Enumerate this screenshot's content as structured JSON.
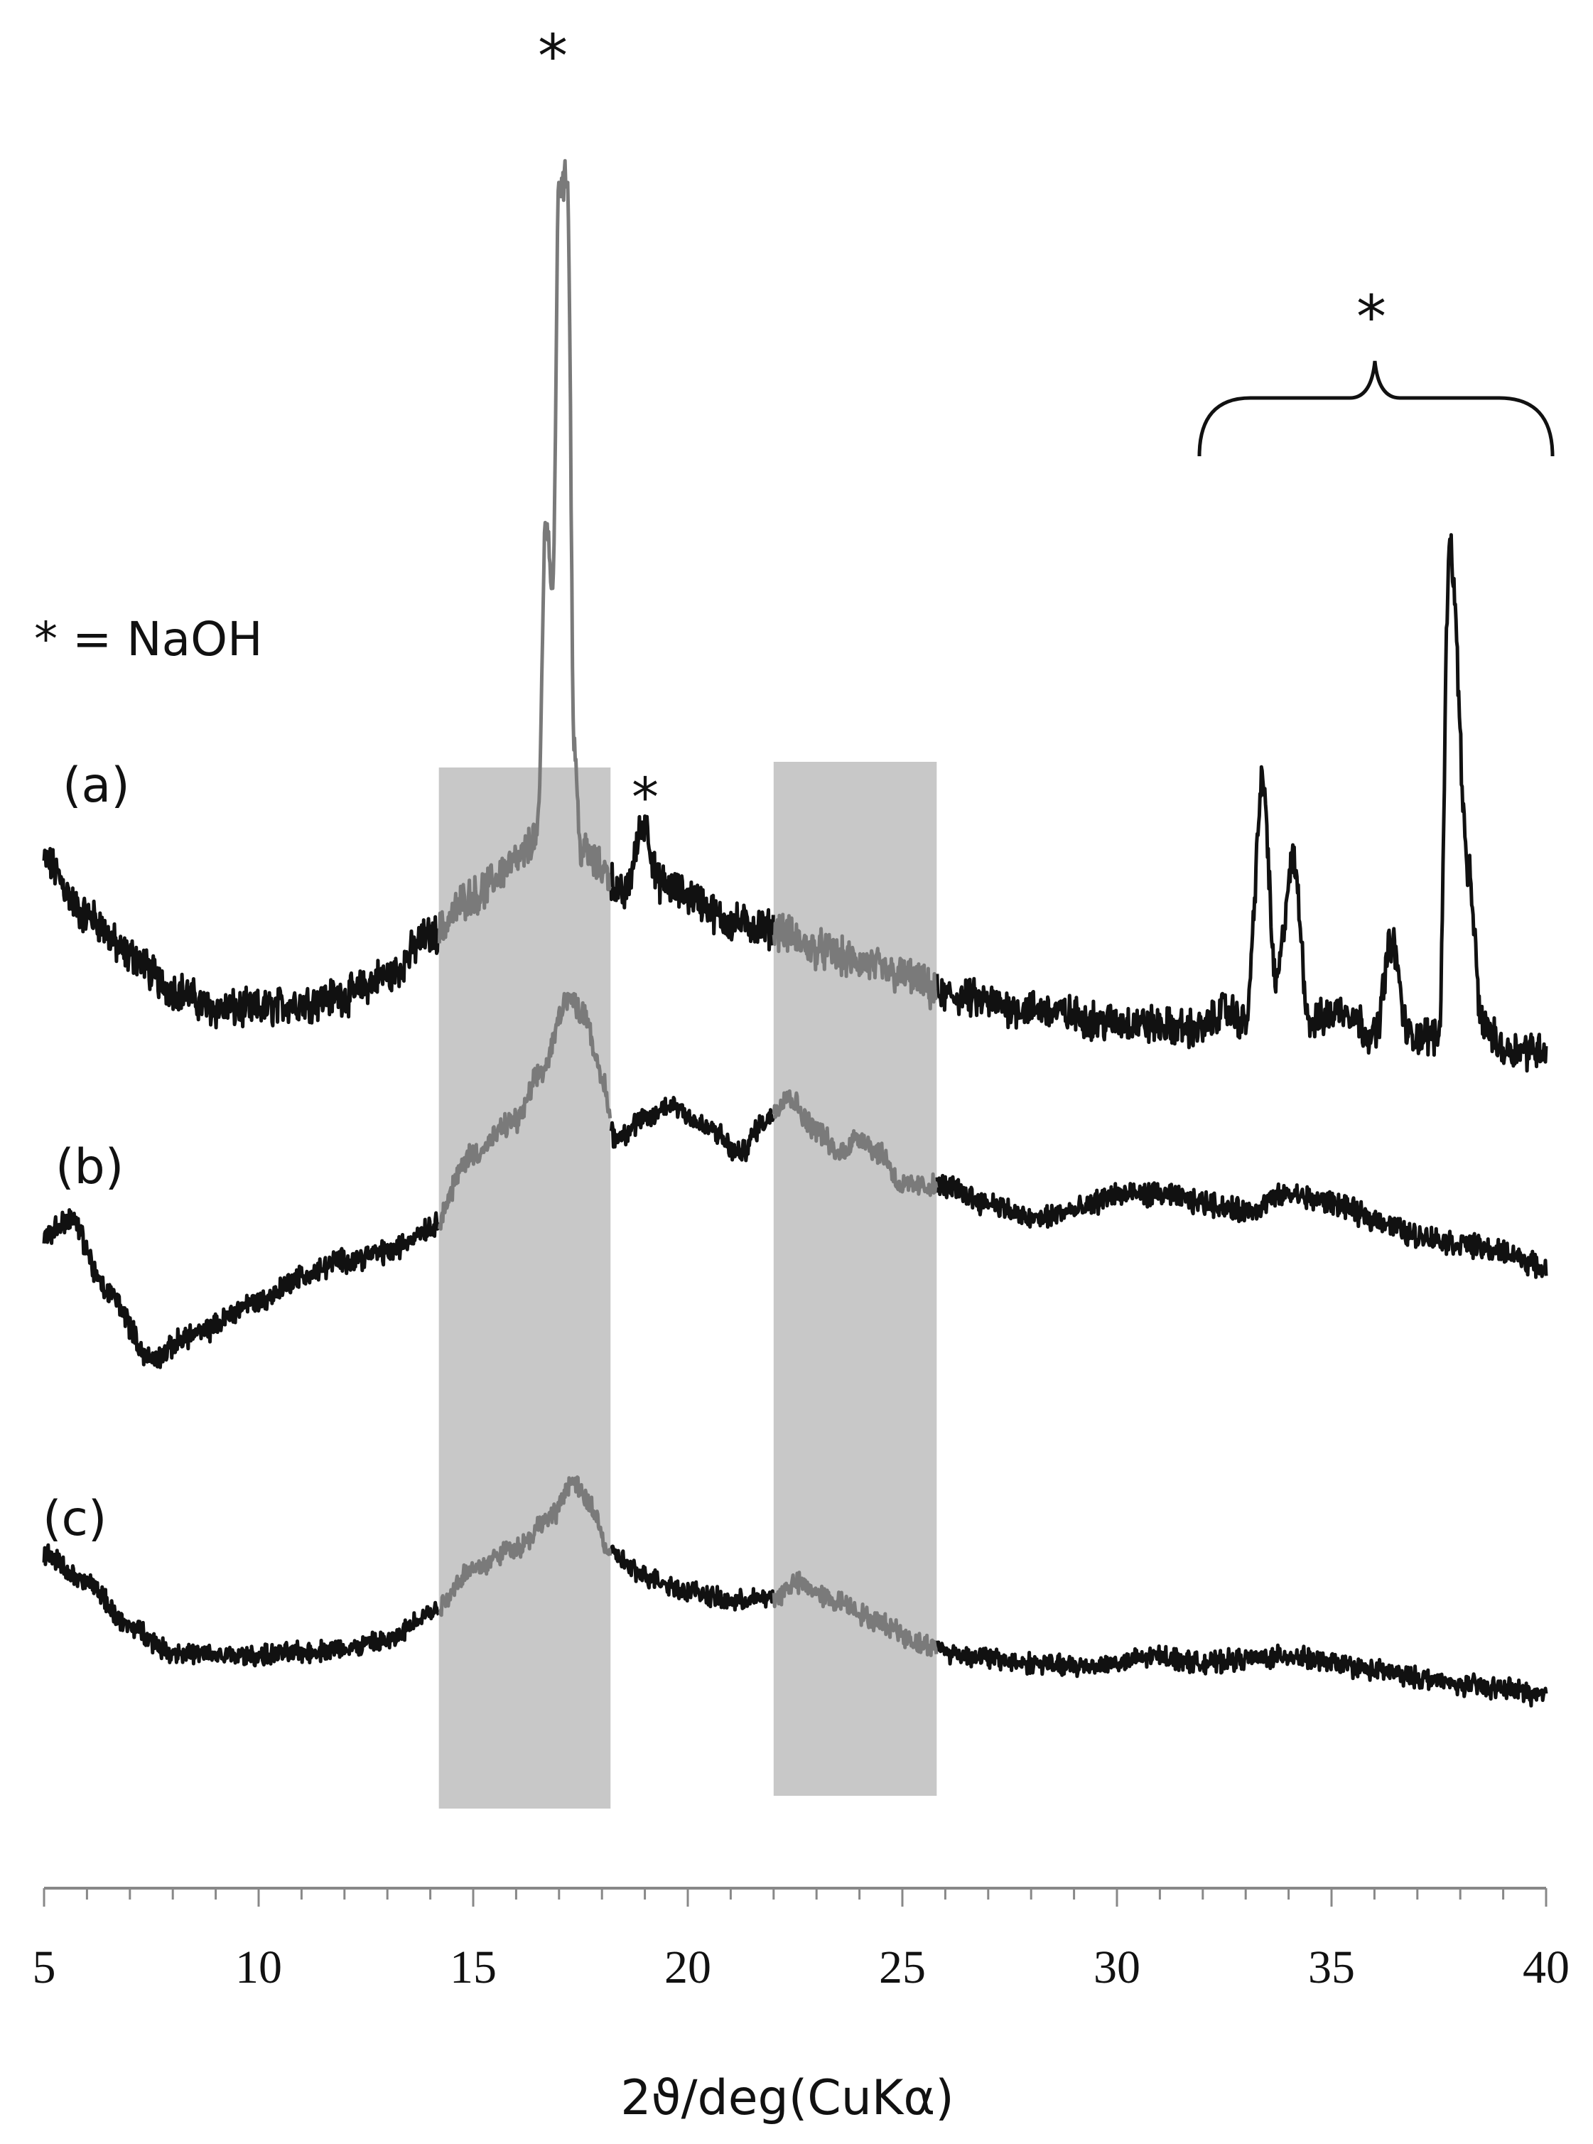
{
  "chart_data": {
    "type": "line",
    "title": "",
    "xlabel": "2ϑ/deg(CuKα)",
    "ylabel": "",
    "xlim": [
      5,
      40
    ],
    "x_ticks": [
      5,
      10,
      15,
      20,
      25,
      30,
      35,
      40
    ],
    "x_tick_labels": [
      "5",
      "10",
      "15",
      "20",
      "25",
      "30",
      "35",
      "40"
    ],
    "grid": false,
    "legend_text": "* = NaOH",
    "shaded_regions": [
      {
        "x": [
          14.2,
          18.2
        ],
        "color": "#c8c8c8"
      },
      {
        "x": [
          22.0,
          25.8
        ],
        "color": "#c8c8c8"
      }
    ],
    "series": [
      {
        "name": "(a)",
        "points": [
          [
            5,
            0.11
          ],
          [
            6,
            0.07
          ],
          [
            7,
            0.04
          ],
          [
            8,
            0.015
          ],
          [
            9,
            0.0
          ],
          [
            10,
            0.0
          ],
          [
            11,
            0.005
          ],
          [
            12,
            0.01
          ],
          [
            13,
            0.025
          ],
          [
            14,
            0.055
          ],
          [
            15,
            0.085
          ],
          [
            16,
            0.11
          ],
          [
            16.5,
            0.13
          ],
          [
            16.7,
            0.37
          ],
          [
            16.85,
            0.31
          ],
          [
            17.0,
            0.62
          ],
          [
            17.2,
            0.62
          ],
          [
            17.35,
            0.2
          ],
          [
            17.5,
            0.12
          ],
          [
            18.0,
            0.105
          ],
          [
            18.5,
            0.085
          ],
          [
            19.0,
            0.14
          ],
          [
            19.3,
            0.095
          ],
          [
            20.0,
            0.085
          ],
          [
            21.0,
            0.065
          ],
          [
            22.0,
            0.06
          ],
          [
            23.0,
            0.045
          ],
          [
            24.0,
            0.035
          ],
          [
            25.0,
            0.025
          ],
          [
            26.0,
            0.01
          ],
          [
            28.0,
            0.0
          ],
          [
            30.0,
            -0.01
          ],
          [
            32.0,
            -0.015
          ],
          [
            32.5,
            0.0
          ],
          [
            33.0,
            -0.01
          ],
          [
            33.4,
            0.17
          ],
          [
            33.7,
            0.02
          ],
          [
            34.1,
            0.11
          ],
          [
            34.5,
            -0.01
          ],
          [
            35.3,
            0.0
          ],
          [
            36.0,
            -0.02
          ],
          [
            36.4,
            0.05
          ],
          [
            36.8,
            -0.02
          ],
          [
            37.5,
            -0.02
          ],
          [
            37.75,
            0.35
          ],
          [
            38.2,
            0.1
          ],
          [
            38.5,
            -0.01
          ],
          [
            39.0,
            -0.03
          ],
          [
            40.0,
            -0.03
          ]
        ]
      },
      {
        "name": "(b)",
        "points": [
          [
            5,
            0.17
          ],
          [
            5.6,
            0.19
          ],
          [
            6.5,
            0.1
          ],
          [
            7.5,
            0.02
          ],
          [
            8.5,
            0.05
          ],
          [
            10,
            0.09
          ],
          [
            11,
            0.12
          ],
          [
            12,
            0.14
          ],
          [
            13,
            0.15
          ],
          [
            14,
            0.18
          ],
          [
            15,
            0.27
          ],
          [
            16,
            0.31
          ],
          [
            16.6,
            0.37
          ],
          [
            17.2,
            0.46
          ],
          [
            17.6,
            0.44
          ],
          [
            18.0,
            0.36
          ],
          [
            18.3,
            0.29
          ],
          [
            19.0,
            0.31
          ],
          [
            19.6,
            0.33
          ],
          [
            20.5,
            0.3
          ],
          [
            21.2,
            0.27
          ],
          [
            21.8,
            0.31
          ],
          [
            22.3,
            0.34
          ],
          [
            23.0,
            0.3
          ],
          [
            23.5,
            0.27
          ],
          [
            24.0,
            0.29
          ],
          [
            24.5,
            0.27
          ],
          [
            25.0,
            0.23
          ],
          [
            26.0,
            0.23
          ],
          [
            27.0,
            0.21
          ],
          [
            28.0,
            0.19
          ],
          [
            29.0,
            0.2
          ],
          [
            30.0,
            0.22
          ],
          [
            31.0,
            0.22
          ],
          [
            32.0,
            0.21
          ],
          [
            33.0,
            0.2
          ],
          [
            34.0,
            0.22
          ],
          [
            35.0,
            0.21
          ],
          [
            36.0,
            0.19
          ],
          [
            37.0,
            0.17
          ],
          [
            38.0,
            0.16
          ],
          [
            39.0,
            0.15
          ],
          [
            40.0,
            0.13
          ]
        ]
      },
      {
        "name": "(c)",
        "points": [
          [
            5,
            0.14
          ],
          [
            6,
            0.1
          ],
          [
            7,
            0.04
          ],
          [
            8,
            0.005
          ],
          [
            9,
            0.0
          ],
          [
            10,
            0.0
          ],
          [
            11,
            0.005
          ],
          [
            12,
            0.01
          ],
          [
            13,
            0.02
          ],
          [
            14,
            0.06
          ],
          [
            15,
            0.12
          ],
          [
            16,
            0.15
          ],
          [
            16.8,
            0.19
          ],
          [
            17.3,
            0.24
          ],
          [
            17.7,
            0.21
          ],
          [
            18.2,
            0.14
          ],
          [
            19.0,
            0.11
          ],
          [
            20.0,
            0.09
          ],
          [
            21.0,
            0.075
          ],
          [
            22.0,
            0.08
          ],
          [
            22.5,
            0.1
          ],
          [
            23.5,
            0.075
          ],
          [
            24.5,
            0.045
          ],
          [
            25.5,
            0.015
          ],
          [
            26.5,
            0.0
          ],
          [
            28.0,
            -0.01
          ],
          [
            29.0,
            -0.015
          ],
          [
            30.0,
            -0.01
          ],
          [
            31.0,
            0.0
          ],
          [
            32.0,
            -0.01
          ],
          [
            33.0,
            -0.005
          ],
          [
            34.0,
            0.0
          ],
          [
            35.0,
            -0.01
          ],
          [
            36.0,
            -0.02
          ],
          [
            37.0,
            -0.03
          ],
          [
            38.0,
            -0.04
          ],
          [
            39.0,
            -0.045
          ],
          [
            40.0,
            -0.055
          ]
        ]
      }
    ],
    "annotations": [
      {
        "text": "*",
        "x": 17.1
      },
      {
        "text": "*",
        "x": 19.0
      },
      {
        "text": "*",
        "x": 36.0,
        "bracket_x": [
          32.0,
          40.0
        ]
      }
    ]
  }
}
